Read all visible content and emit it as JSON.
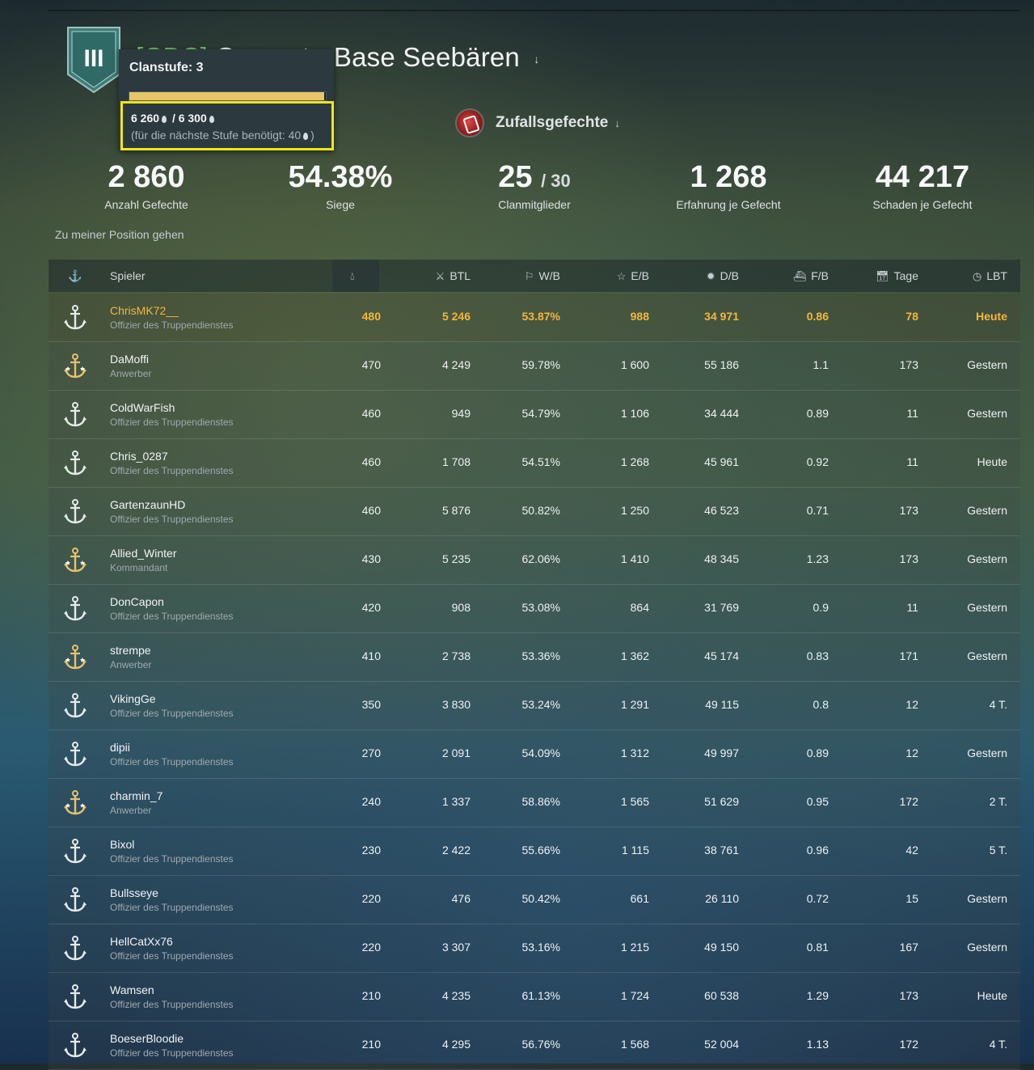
{
  "clan": {
    "tag": "[CBC]",
    "name_visible": "ComputerBase Seebären",
    "tier_roman": "III"
  },
  "tooltip": {
    "title": "Clanstufe: 3",
    "progress_fraction": 0.9937,
    "current": "6 260",
    "target": "/ 6 300",
    "needed": "(für die nächste Stufe benötigt: 40",
    "needed_close": ")"
  },
  "mode": {
    "label": "Zufallsgefechte",
    "icon": "random-battles-icon"
  },
  "stats": [
    {
      "value": "2 860",
      "label": "Anzahl Gefechte"
    },
    {
      "value": "54.38%",
      "label": "Siege"
    },
    {
      "value": "25",
      "value_small": "/ 30",
      "label": "Clanmitglieder"
    },
    {
      "value": "1 268",
      "label": "Erfahrung je Gefecht"
    },
    {
      "value": "44 217",
      "label": "Schaden je Gefecht"
    }
  ],
  "my_position_link": "Zu meiner Position gehen",
  "table": {
    "headers": {
      "player": "Spieler",
      "btl": "BTL",
      "wb": "W/B",
      "eb": "E/B",
      "db": "D/B",
      "fb": "F/B",
      "days": "Tage",
      "lbt": "LBT"
    },
    "rows": [
      {
        "name": "ChrisMK72__",
        "rank": "Offizier des Truppendienstes",
        "res": "480",
        "btl": "5 246",
        "wb": "53.87%",
        "eb": "988",
        "db": "34 971",
        "fb": "0.86",
        "days": "78",
        "lbt": "Heute",
        "me": true,
        "gold": false
      },
      {
        "name": "DaMoffi",
        "rank": "Anwerber",
        "res": "470",
        "btl": "4 249",
        "wb": "59.78%",
        "eb": "1 600",
        "db": "55 186",
        "fb": "1.1",
        "days": "173",
        "lbt": "Gestern",
        "gold": true
      },
      {
        "name": "ColdWarFish",
        "rank": "Offizier des Truppendienstes",
        "res": "460",
        "btl": "949",
        "wb": "54.79%",
        "eb": "1 106",
        "db": "34 444",
        "fb": "0.89",
        "days": "11",
        "lbt": "Gestern",
        "gold": false
      },
      {
        "name": "Chris_0287",
        "rank": "Offizier des Truppendienstes",
        "res": "460",
        "btl": "1 708",
        "wb": "54.51%",
        "eb": "1 268",
        "db": "45 961",
        "fb": "0.92",
        "days": "11",
        "lbt": "Heute",
        "gold": false
      },
      {
        "name": "GartenzaunHD",
        "rank": "Offizier des Truppendienstes",
        "res": "460",
        "btl": "5 876",
        "wb": "50.82%",
        "eb": "1 250",
        "db": "46 523",
        "fb": "0.71",
        "days": "173",
        "lbt": "Gestern",
        "gold": false
      },
      {
        "name": "Allied_Winter",
        "rank": "Kommandant",
        "res": "430",
        "btl": "5 235",
        "wb": "62.06%",
        "eb": "1 410",
        "db": "48 345",
        "fb": "1.23",
        "days": "173",
        "lbt": "Gestern",
        "gold": true
      },
      {
        "name": "DonCapon",
        "rank": "Offizier des Truppendienstes",
        "res": "420",
        "btl": "908",
        "wb": "53.08%",
        "eb": "864",
        "db": "31 769",
        "fb": "0.9",
        "days": "11",
        "lbt": "Gestern",
        "gold": false
      },
      {
        "name": "strempe",
        "rank": "Anwerber",
        "res": "410",
        "btl": "2 738",
        "wb": "53.36%",
        "eb": "1 362",
        "db": "45 174",
        "fb": "0.83",
        "days": "171",
        "lbt": "Gestern",
        "gold": true
      },
      {
        "name": "VikingGe",
        "rank": "Offizier des Truppendienstes",
        "res": "350",
        "btl": "3 830",
        "wb": "53.24%",
        "eb": "1 291",
        "db": "49 115",
        "fb": "0.8",
        "days": "12",
        "lbt": "4 T.",
        "gold": false
      },
      {
        "name": "dipii",
        "rank": "Offizier des Truppendienstes",
        "res": "270",
        "btl": "2 091",
        "wb": "54.09%",
        "eb": "1 312",
        "db": "49 997",
        "fb": "0.89",
        "days": "12",
        "lbt": "Gestern",
        "gold": false
      },
      {
        "name": "charmin_7",
        "rank": "Anwerber",
        "res": "240",
        "btl": "1 337",
        "wb": "58.86%",
        "eb": "1 565",
        "db": "51 629",
        "fb": "0.95",
        "days": "172",
        "lbt": "2 T.",
        "gold": true
      },
      {
        "name": "Bixol",
        "rank": "Offizier des Truppendienstes",
        "res": "230",
        "btl": "2 422",
        "wb": "55.66%",
        "eb": "1 115",
        "db": "38 761",
        "fb": "0.96",
        "days": "42",
        "lbt": "5 T.",
        "gold": false
      },
      {
        "name": "Bullsseye",
        "rank": "Offizier des Truppendienstes",
        "res": "220",
        "btl": "476",
        "wb": "50.42%",
        "eb": "661",
        "db": "26 110",
        "fb": "0.72",
        "days": "15",
        "lbt": "Gestern",
        "gold": false
      },
      {
        "name": "HellCatXx76",
        "rank": "Offizier des Truppendienstes",
        "res": "220",
        "btl": "3 307",
        "wb": "53.16%",
        "eb": "1 215",
        "db": "49 150",
        "fb": "0.81",
        "days": "167",
        "lbt": "Gestern",
        "gold": false
      },
      {
        "name": "Wamsen",
        "rank": "Offizier des Truppendienstes",
        "res": "210",
        "btl": "4 235",
        "wb": "61.13%",
        "eb": "1 724",
        "db": "60 538",
        "fb": "1.29",
        "days": "173",
        "lbt": "Heute",
        "gold": false
      },
      {
        "name": "BoeserBloodie",
        "rank": "Offizier des Truppendienstes",
        "res": "210",
        "btl": "4 295",
        "wb": "56.76%",
        "eb": "1 568",
        "db": "52 004",
        "fb": "1.13",
        "days": "172",
        "lbt": "4 T.",
        "gold": false
      }
    ]
  },
  "colors": {
    "accent_gold": "#f4b73a",
    "tooltip_highlight": "#f0e51c",
    "progress": "#e9c56a",
    "clan_tag": "#6fbf62"
  }
}
